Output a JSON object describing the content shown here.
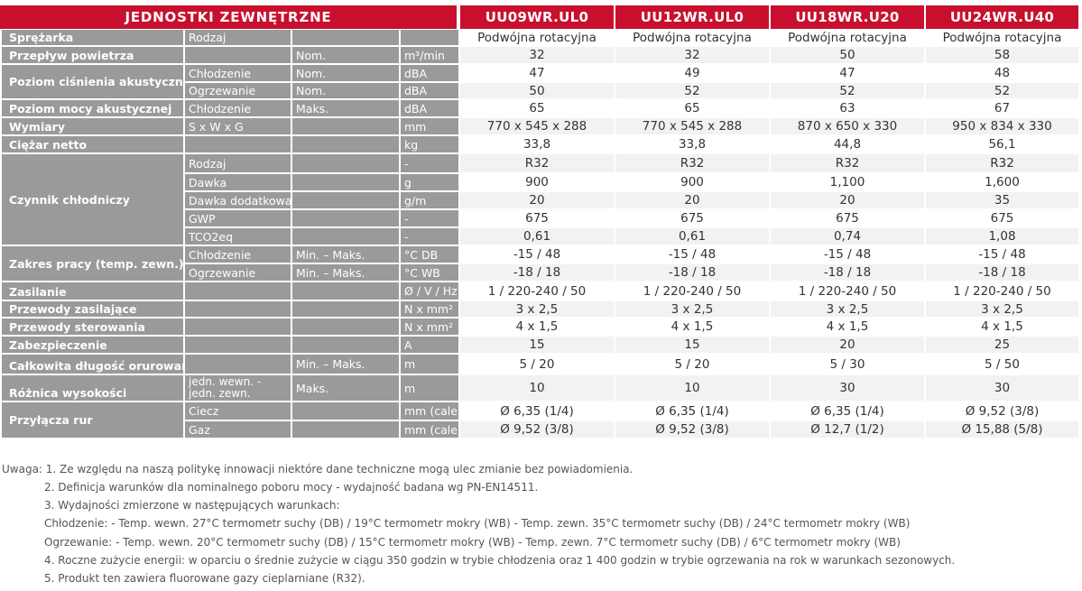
{
  "table": {
    "header": [
      "JEDNOSTKI ZEWNĘTRZNE",
      "UU09WR.UL0",
      "UU12WR.UL0",
      "UU18WR.U20",
      "UU24WR.U40"
    ],
    "rows": [
      {
        "label": "Sprężarka",
        "sub": "Rodzaj",
        "cond": "",
        "unit": "",
        "values": [
          "Podwójna rotacyjna",
          "Podwójna rotacyjna",
          "Podwójna rotacyjna",
          "Podwójna rotacyjna"
        ]
      },
      {
        "label": "Przepływ powietrza",
        "sub": "",
        "cond": "Nom.",
        "unit": "m³/min",
        "values": [
          "32",
          "32",
          "50",
          "58"
        ]
      },
      {
        "label": "Poziom ciśnienia akustycznego",
        "sub": "Chłodzenie",
        "cond": "Nom.",
        "unit": "dBA",
        "values": [
          "47",
          "49",
          "47",
          "48"
        ]
      },
      {
        "label": "",
        "sub": "Ogrzewanie",
        "cond": "Nom.",
        "unit": "dBA",
        "values": [
          "50",
          "52",
          "52",
          "52"
        ]
      },
      {
        "label": "Poziom mocy akustycznej",
        "sub": "Chłodzenie",
        "cond": "Maks.",
        "unit": "dBA",
        "values": [
          "65",
          "65",
          "63",
          "67"
        ]
      },
      {
        "label": "Wymiary",
        "sub": "S x W x G",
        "cond": "",
        "unit": "mm",
        "values": [
          "770 x 545 x 288",
          "770 x 545 x 288",
          "870 x 650 x 330",
          "950 x 834 x 330"
        ]
      },
      {
        "label": "Ciężar netto",
        "sub": "",
        "cond": "",
        "unit": "kg",
        "values": [
          "33,8",
          "33,8",
          "44,8",
          "56,1"
        ]
      },
      {
        "label": "Czynnik chłodniczy",
        "sub": "Rodzaj",
        "cond": "",
        "unit": "-",
        "values": [
          "R32",
          "R32",
          "R32",
          "R32"
        ]
      },
      {
        "label": "",
        "sub": "Dawka",
        "cond": "",
        "unit": "g",
        "values": [
          "900",
          "900",
          "1,100",
          "1,600"
        ]
      },
      {
        "label": "",
        "sub": "Dawka dodatkowa",
        "cond": "",
        "unit": "g/m",
        "values": [
          "20",
          "20",
          "20",
          "35"
        ]
      },
      {
        "label": "",
        "sub": "GWP",
        "cond": "",
        "unit": "-",
        "values": [
          "675",
          "675",
          "675",
          "675"
        ]
      },
      {
        "label": "",
        "sub": "TCO2eq",
        "cond": "",
        "unit": "-",
        "values": [
          "0,61",
          "0,61",
          "0,74",
          "1,08"
        ]
      },
      {
        "label": "Zakres pracy (temp. zewn.)",
        "sub": "Chłodzenie",
        "cond": "Min. – Maks.",
        "unit": "°C DB",
        "values": [
          "-15 / 48",
          "-15 / 48",
          "-15 / 48",
          "-15 / 48"
        ]
      },
      {
        "label": "",
        "sub": "Ogrzewanie",
        "cond": "Min. – Maks.",
        "unit": "°C WB",
        "values": [
          "-18 / 18",
          "-18 / 18",
          "-18 / 18",
          "-18 / 18"
        ]
      },
      {
        "label": "Zasilanie",
        "sub": "",
        "cond": "",
        "unit": "Ø / V / Hz",
        "values": [
          "1 / 220-240 / 50",
          "1 / 220-240 / 50",
          "1 / 220-240 / 50",
          "1 / 220-240 / 50"
        ]
      },
      {
        "label": "Przewody zasilające",
        "sub": "",
        "cond": "",
        "unit": "N x mm²",
        "values": [
          "3 x 2,5",
          "3 x 2,5",
          "3 x 2,5",
          "3 x 2,5"
        ]
      },
      {
        "label": "Przewody sterowania",
        "sub": "",
        "cond": "",
        "unit": "N x mm²",
        "values": [
          "4 x 1,5",
          "4 x 1,5",
          "4 x 1,5",
          "4 x 1,5"
        ]
      },
      {
        "label": "Zabezpieczenie",
        "sub": "",
        "cond": "",
        "unit": "A",
        "values": [
          "15",
          "15",
          "20",
          "25"
        ]
      },
      {
        "label": "Całkowita długość orurowania",
        "sub": "",
        "cond": "Min. – Maks.",
        "unit": "m",
        "values": [
          "5 / 20",
          "5 / 20",
          "5 / 30",
          "5 / 50"
        ]
      },
      {
        "label": "Różnica wysokości",
        "sub": "jedn. wewn. - jedn. zewn.",
        "cond": "Maks.",
        "unit": "m",
        "values": [
          "10",
          "10",
          "30",
          "30"
        ]
      },
      {
        "label": "Przyłącza rur",
        "sub": "Ciecz",
        "cond": "",
        "unit": "mm (cale)",
        "values": [
          "Ø 6,35 (1/4)",
          "Ø 6,35 (1/4)",
          "Ø 6,35 (1/4)",
          "Ø 9,52 (3/8)"
        ]
      },
      {
        "label": "",
        "sub": "Gaz",
        "cond": "",
        "unit": "mm (cale)",
        "values": [
          "Ø 9,52 (3/8)",
          "Ø 9,52 (3/8)",
          "Ø 12,7 (1/2)",
          "Ø 15,88 (5/8)"
        ]
      }
    ]
  },
  "notes": [
    "Uwaga: 1. Ze względu na naszą politykę innowacji niektóre dane techniczne mogą ulec zmianie bez powiadomienia.",
    "2. Definicja warunków dla nominalnego poboru mocy - wydajność badana wg PN-EN14511.",
    "3. Wydajności zmierzone w następujących warunkach:",
    "Chłodzenie: - Temp. wewn. 27°C termometr suchy (DB) / 19°C termometr mokry (WB) - Temp. zewn. 35°C termometr suchy (DB) / 24°C termometr mokry (WB)",
    "Ogrzewanie: - Temp. wewn. 20°C termometr suchy (DB) / 15°C termometr mokry (WB) - Temp. zewn. 7°C termometr suchy (DB) / 6°C termometr mokry (WB)",
    "4. Roczne zużycie energii: w oparciu o średnie zużycie w ciągu 350 godzin w trybie chłodzenia oraz 1 400 godzin w trybie ogrzewania na rok w warunkach sezonowych.",
    "5. Produkt ten zawiera fluorowane gazy cieplarniane (R32)."
  ],
  "colors": {
    "header_red": "#c8102e",
    "label_grey": "#9a9a9a",
    "row_alt": "#f2f2f2"
  }
}
